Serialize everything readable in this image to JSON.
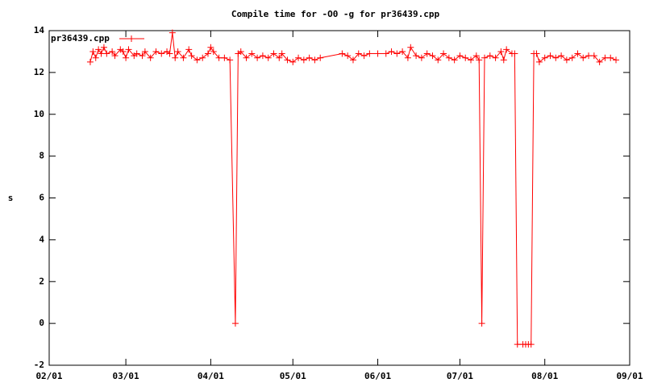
{
  "chart_data": {
    "type": "line",
    "title": "Compile time for -O0 -g for pr36439.cpp",
    "y_label": "s",
    "xlim": [
      "02/01",
      "09/01"
    ],
    "xticks": [
      "02/01",
      "03/01",
      "04/01",
      "05/01",
      "06/01",
      "07/01",
      "08/01",
      "09/01"
    ],
    "ylim": [
      -2,
      14
    ],
    "yticks": [
      -2,
      0,
      2,
      4,
      6,
      8,
      10,
      12,
      14
    ],
    "legend": "top-left",
    "series": [
      {
        "name": "pr36439.cpp",
        "color": "#ff0000",
        "x": [
          "02/16",
          "02/17",
          "02/18",
          "02/19",
          "02/20",
          "02/21",
          "02/22",
          "02/24",
          "02/25",
          "02/27",
          "02/28",
          "03/01",
          "03/02",
          "03/04",
          "03/05",
          "03/07",
          "03/08",
          "03/10",
          "03/12",
          "03/14",
          "03/16",
          "03/17",
          "03/18",
          "03/19",
          "03/20",
          "03/22",
          "03/24",
          "03/25",
          "03/27",
          "03/29",
          "03/31",
          "04/01",
          "04/02",
          "04/04",
          "04/06",
          "04/08",
          "04/10",
          "04/11",
          "04/12",
          "04/14",
          "04/16",
          "04/18",
          "04/20",
          "04/22",
          "04/24",
          "04/26",
          "04/27",
          "04/29",
          "05/01",
          "05/03",
          "05/05",
          "05/07",
          "05/09",
          "05/11",
          "05/19",
          "05/21",
          "05/23",
          "05/25",
          "05/27",
          "05/29",
          "06/01",
          "06/04",
          "06/06",
          "06/08",
          "06/10",
          "06/12",
          "06/13",
          "06/15",
          "06/17",
          "06/19",
          "06/21",
          "06/23",
          "06/25",
          "06/27",
          "06/29",
          "07/01",
          "07/03",
          "07/05",
          "07/07",
          "07/08",
          "07/09",
          "07/10",
          "07/12",
          "07/14",
          "07/16",
          "07/17",
          "07/18",
          "07/20",
          "07/21",
          "07/22",
          "07/24",
          "07/25",
          "07/26",
          "07/27",
          "07/28",
          "07/29",
          "07/30",
          "08/01",
          "08/03",
          "08/05",
          "08/07",
          "08/09",
          "08/11",
          "08/13",
          "08/15",
          "08/17",
          "08/19",
          "08/21",
          "08/23",
          "08/25",
          "08/27"
        ],
        "values": [
          12.5,
          13.0,
          12.7,
          13.1,
          12.9,
          13.2,
          12.9,
          13.0,
          12.8,
          13.1,
          13.0,
          12.7,
          13.1,
          12.8,
          12.9,
          12.8,
          13.0,
          12.7,
          13.0,
          12.9,
          13.0,
          12.9,
          13.9,
          12.7,
          13.0,
          12.7,
          13.1,
          12.8,
          12.6,
          12.7,
          12.9,
          13.2,
          13.0,
          12.7,
          12.7,
          12.6,
          0,
          12.9,
          13.0,
          12.7,
          12.9,
          12.7,
          12.8,
          12.7,
          12.9,
          12.7,
          12.9,
          12.6,
          12.5,
          12.7,
          12.6,
          12.7,
          12.6,
          12.7,
          12.9,
          12.8,
          12.6,
          12.9,
          12.8,
          12.9,
          12.9,
          12.9,
          13.0,
          12.9,
          13.0,
          12.7,
          13.2,
          12.8,
          12.7,
          12.9,
          12.8,
          12.6,
          12.9,
          12.7,
          12.6,
          12.8,
          12.7,
          12.6,
          12.8,
          12.6,
          0,
          12.7,
          12.8,
          12.7,
          13.0,
          12.6,
          13.1,
          12.9,
          12.9,
          -1,
          -1,
          -1,
          -1,
          -1,
          12.9,
          12.9,
          12.5,
          12.7,
          12.8,
          12.7,
          12.8,
          12.6,
          12.7,
          12.9,
          12.7,
          12.8,
          12.8,
          12.5,
          12.7,
          12.7,
          12.6
        ]
      }
    ]
  }
}
